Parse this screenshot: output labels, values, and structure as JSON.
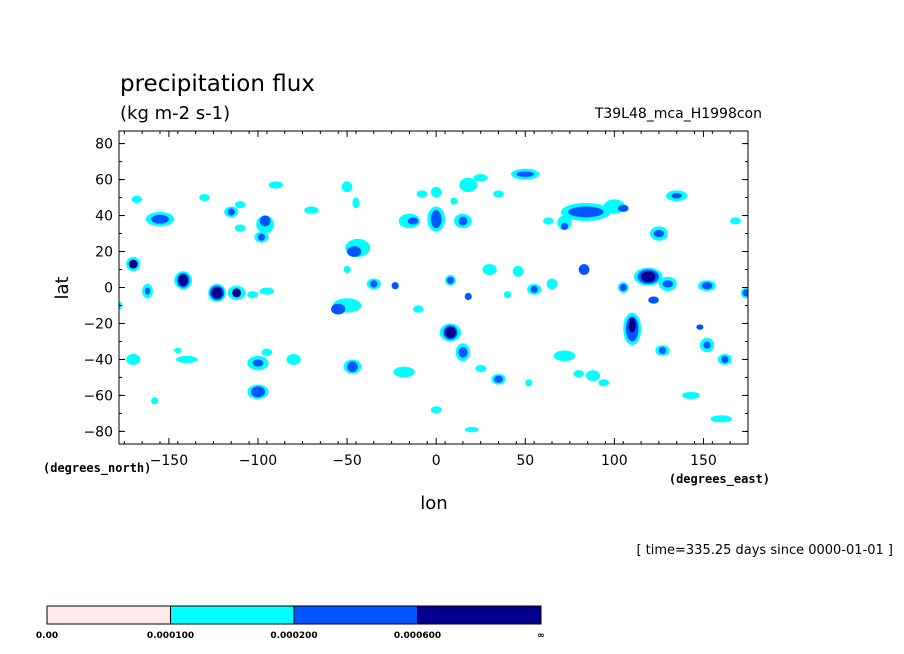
{
  "chart_data": {
    "type": "heatmap",
    "title": "precipitation flux",
    "units": "(kg m-2 s-1)",
    "run_label": "T39L48_mca_H1998con",
    "xlabel": "lon",
    "ylabel": "lat",
    "x_unit_label": "(degrees_east)",
    "y_unit_label": "(degrees_north)",
    "time_label": "[ time=335.25 days since 0000-01-01 ]",
    "xlim": [
      -178,
      175
    ],
    "ylim": [
      -87,
      87
    ],
    "x_ticks": [
      -150,
      -100,
      -50,
      0,
      50,
      100,
      150
    ],
    "x_tick_labels": [
      "−150",
      "−100",
      "−50",
      "0",
      "50",
      "100",
      "150"
    ],
    "y_ticks": [
      80,
      60,
      40,
      20,
      0,
      -20,
      -40,
      -60,
      -80
    ],
    "y_tick_labels": [
      "80",
      "60",
      "40",
      "20",
      "0",
      "−20",
      "−40",
      "−60",
      "−80"
    ],
    "levels": [
      "0.00",
      "0.000100",
      "0.000200",
      "0.000600",
      "∞"
    ],
    "level_colors": [
      "#ffe8e8",
      "#00ffff",
      "#0055ff",
      "#00008b"
    ],
    "cells": [
      {
        "lon": -168,
        "lat": 49,
        "level": 1,
        "rx": 3,
        "ry": 2
      },
      {
        "lon": -155,
        "lat": 38,
        "level": 1,
        "rx": 8,
        "ry": 4
      },
      {
        "lon": -155,
        "lat": 38,
        "level": 2,
        "rx": 5,
        "ry": 2.5
      },
      {
        "lon": -170,
        "lat": 13,
        "level": 1,
        "rx": 4,
        "ry": 4
      },
      {
        "lon": -170,
        "lat": 13,
        "level": 3,
        "rx": 2.5,
        "ry": 2.5
      },
      {
        "lon": -162,
        "lat": -2,
        "level": 1,
        "rx": 3,
        "ry": 4
      },
      {
        "lon": -162,
        "lat": -2,
        "level": 2,
        "rx": 1.5,
        "ry": 2
      },
      {
        "lon": -142,
        "lat": 4,
        "level": 1,
        "rx": 5,
        "ry": 5
      },
      {
        "lon": -142,
        "lat": 4,
        "level": 2,
        "rx": 3.5,
        "ry": 4
      },
      {
        "lon": -142,
        "lat": 4,
        "level": 3,
        "rx": 2.5,
        "ry": 3
      },
      {
        "lon": -123,
        "lat": -3,
        "level": 1,
        "rx": 5,
        "ry": 5
      },
      {
        "lon": -123,
        "lat": -3,
        "level": 2,
        "rx": 4,
        "ry": 4
      },
      {
        "lon": -123,
        "lat": -3,
        "level": 3,
        "rx": 3,
        "ry": 3
      },
      {
        "lon": -112,
        "lat": -3,
        "level": 1,
        "rx": 5,
        "ry": 4
      },
      {
        "lon": -112,
        "lat": -3,
        "level": 3,
        "rx": 2.5,
        "ry": 2.5
      },
      {
        "lon": -130,
        "lat": 50,
        "level": 1,
        "rx": 3,
        "ry": 2
      },
      {
        "lon": -115,
        "lat": 42,
        "level": 1,
        "rx": 4,
        "ry": 3
      },
      {
        "lon": -115,
        "lat": 42,
        "level": 2,
        "rx": 2,
        "ry": 2
      },
      {
        "lon": -96,
        "lat": 35,
        "level": 1,
        "rx": 5,
        "ry": 5
      },
      {
        "lon": -96,
        "lat": 37,
        "level": 2,
        "rx": 3,
        "ry": 3
      },
      {
        "lon": -98,
        "lat": 28,
        "level": 1,
        "rx": 4,
        "ry": 3
      },
      {
        "lon": -98,
        "lat": 28,
        "level": 2,
        "rx": 2,
        "ry": 2
      },
      {
        "lon": -110,
        "lat": 33,
        "level": 1,
        "rx": 3,
        "ry": 2
      },
      {
        "lon": -110,
        "lat": 46,
        "level": 1,
        "rx": 3,
        "ry": 2
      },
      {
        "lon": -90,
        "lat": 57,
        "level": 1,
        "rx": 4,
        "ry": 2
      },
      {
        "lon": -70,
        "lat": 43,
        "level": 1,
        "rx": 4,
        "ry": 2
      },
      {
        "lon": -50,
        "lat": 56,
        "level": 1,
        "rx": 3,
        "ry": 3
      },
      {
        "lon": -45,
        "lat": 47,
        "level": 1,
        "rx": 2,
        "ry": 3
      },
      {
        "lon": -44,
        "lat": 22,
        "level": 1,
        "rx": 7,
        "ry": 5
      },
      {
        "lon": -46,
        "lat": 20,
        "level": 2,
        "rx": 4,
        "ry": 3
      },
      {
        "lon": -50,
        "lat": 10,
        "level": 1,
        "rx": 2,
        "ry": 2
      },
      {
        "lon": -35,
        "lat": 2,
        "level": 1,
        "rx": 4,
        "ry": 3
      },
      {
        "lon": -35,
        "lat": 2,
        "level": 2,
        "rx": 2,
        "ry": 2
      },
      {
        "lon": -23,
        "lat": 1,
        "level": 2,
        "rx": 2,
        "ry": 2
      },
      {
        "lon": -50,
        "lat": -10,
        "level": 1,
        "rx": 8,
        "ry": 4
      },
      {
        "lon": -55,
        "lat": -12,
        "level": 2,
        "rx": 4,
        "ry": 3
      },
      {
        "lon": -95,
        "lat": -2,
        "level": 1,
        "rx": 4,
        "ry": 2
      },
      {
        "lon": -103,
        "lat": -4,
        "level": 1,
        "rx": 3,
        "ry": 2
      },
      {
        "lon": -8,
        "lat": 52,
        "level": 1,
        "rx": 3,
        "ry": 2
      },
      {
        "lon": 0,
        "lat": 53,
        "level": 1,
        "rx": 3,
        "ry": 3
      },
      {
        "lon": 18,
        "lat": 57,
        "level": 1,
        "rx": 5,
        "ry": 4
      },
      {
        "lon": 25,
        "lat": 61,
        "level": 1,
        "rx": 4,
        "ry": 2
      },
      {
        "lon": 50,
        "lat": 63,
        "level": 1,
        "rx": 8,
        "ry": 3
      },
      {
        "lon": 50,
        "lat": 63,
        "level": 2,
        "rx": 5,
        "ry": 1.5
      },
      {
        "lon": 35,
        "lat": 52,
        "level": 1,
        "rx": 3,
        "ry": 2
      },
      {
        "lon": -15,
        "lat": 37,
        "level": 1,
        "rx": 6,
        "ry": 4
      },
      {
        "lon": -13,
        "lat": 37,
        "level": 2,
        "rx": 3,
        "ry": 2
      },
      {
        "lon": 0,
        "lat": 38,
        "level": 1,
        "rx": 5,
        "ry": 7
      },
      {
        "lon": 0,
        "lat": 38,
        "level": 2,
        "rx": 3,
        "ry": 5
      },
      {
        "lon": 15,
        "lat": 37,
        "level": 1,
        "rx": 5,
        "ry": 4
      },
      {
        "lon": 15,
        "lat": 37,
        "level": 2,
        "rx": 2.5,
        "ry": 2.5
      },
      {
        "lon": 10,
        "lat": 48,
        "level": 1,
        "rx": 2,
        "ry": 2
      },
      {
        "lon": 8,
        "lat": 4,
        "level": 1,
        "rx": 3,
        "ry": 3
      },
      {
        "lon": 8,
        "lat": 4,
        "level": 2,
        "rx": 2,
        "ry": 2
      },
      {
        "lon": 30,
        "lat": 10,
        "level": 1,
        "rx": 4,
        "ry": 3
      },
      {
        "lon": 46,
        "lat": 9,
        "level": 1,
        "rx": 3,
        "ry": 3
      },
      {
        "lon": 18,
        "lat": -5,
        "level": 2,
        "rx": 2,
        "ry": 2
      },
      {
        "lon": 55,
        "lat": -1,
        "level": 1,
        "rx": 4,
        "ry": 3
      },
      {
        "lon": 55,
        "lat": -1,
        "level": 2,
        "rx": 2,
        "ry": 2
      },
      {
        "lon": 65,
        "lat": 2,
        "level": 1,
        "rx": 3,
        "ry": 3
      },
      {
        "lon": 83,
        "lat": 10,
        "level": 2,
        "rx": 3,
        "ry": 3
      },
      {
        "lon": 84,
        "lat": 42,
        "level": 1,
        "rx": 14,
        "ry": 5
      },
      {
        "lon": 84,
        "lat": 42,
        "level": 2,
        "rx": 10,
        "ry": 3
      },
      {
        "lon": 100,
        "lat": 45,
        "level": 1,
        "rx": 6,
        "ry": 4
      },
      {
        "lon": 105,
        "lat": 44,
        "level": 2,
        "rx": 3,
        "ry": 2
      },
      {
        "lon": 72,
        "lat": 36,
        "level": 1,
        "rx": 4,
        "ry": 4
      },
      {
        "lon": 72,
        "lat": 34,
        "level": 2,
        "rx": 2,
        "ry": 2
      },
      {
        "lon": 63,
        "lat": 37,
        "level": 1,
        "rx": 3,
        "ry": 2
      },
      {
        "lon": 125,
        "lat": 30,
        "level": 1,
        "rx": 5,
        "ry": 4
      },
      {
        "lon": 125,
        "lat": 30,
        "level": 2,
        "rx": 3,
        "ry": 2
      },
      {
        "lon": 135,
        "lat": 51,
        "level": 1,
        "rx": 6,
        "ry": 3
      },
      {
        "lon": 135,
        "lat": 51,
        "level": 2,
        "rx": 3,
        "ry": 1.5
      },
      {
        "lon": 168,
        "lat": 37,
        "level": 1,
        "rx": 3,
        "ry": 2
      },
      {
        "lon": 105,
        "lat": 0,
        "level": 1,
        "rx": 3,
        "ry": 3
      },
      {
        "lon": 105,
        "lat": 0,
        "level": 2,
        "rx": 2,
        "ry": 2
      },
      {
        "lon": 119,
        "lat": 6,
        "level": 1,
        "rx": 8,
        "ry": 5
      },
      {
        "lon": 119,
        "lat": 6,
        "level": 2,
        "rx": 6,
        "ry": 4
      },
      {
        "lon": 119,
        "lat": 6,
        "level": 3,
        "rx": 4,
        "ry": 3
      },
      {
        "lon": 130,
        "lat": 2,
        "level": 1,
        "rx": 5,
        "ry": 4
      },
      {
        "lon": 130,
        "lat": 2,
        "level": 2,
        "rx": 3,
        "ry": 2
      },
      {
        "lon": 122,
        "lat": -7,
        "level": 2,
        "rx": 3,
        "ry": 2
      },
      {
        "lon": 152,
        "lat": 1,
        "level": 1,
        "rx": 5,
        "ry": 3
      },
      {
        "lon": 152,
        "lat": 1,
        "level": 2,
        "rx": 3,
        "ry": 2
      },
      {
        "lon": 174,
        "lat": -3,
        "level": 1,
        "rx": 3,
        "ry": 3
      },
      {
        "lon": 174,
        "lat": -3,
        "level": 2,
        "rx": 2,
        "ry": 2
      },
      {
        "lon": 8,
        "lat": -25,
        "level": 1,
        "rx": 6,
        "ry": 5
      },
      {
        "lon": 8,
        "lat": -25,
        "level": 2,
        "rx": 4,
        "ry": 4
      },
      {
        "lon": 8,
        "lat": -25,
        "level": 3,
        "rx": 3,
        "ry": 3
      },
      {
        "lon": 15,
        "lat": -36,
        "level": 1,
        "rx": 4,
        "ry": 5
      },
      {
        "lon": 15,
        "lat": -36,
        "level": 2,
        "rx": 2.5,
        "ry": 3
      },
      {
        "lon": 25,
        "lat": -45,
        "level": 1,
        "rx": 3,
        "ry": 2
      },
      {
        "lon": 35,
        "lat": -51,
        "level": 1,
        "rx": 4,
        "ry": 3
      },
      {
        "lon": 35,
        "lat": -51,
        "level": 2,
        "rx": 2.5,
        "ry": 2
      },
      {
        "lon": 52,
        "lat": -53,
        "level": 1,
        "rx": 2,
        "ry": 2
      },
      {
        "lon": 110,
        "lat": -23,
        "level": 1,
        "rx": 5,
        "ry": 9
      },
      {
        "lon": 110,
        "lat": -23,
        "level": 2,
        "rx": 3.5,
        "ry": 7
      },
      {
        "lon": 110,
        "lat": -21,
        "level": 3,
        "rx": 2,
        "ry": 4
      },
      {
        "lon": 127,
        "lat": -35,
        "level": 1,
        "rx": 4,
        "ry": 3
      },
      {
        "lon": 127,
        "lat": -35,
        "level": 2,
        "rx": 2,
        "ry": 2
      },
      {
        "lon": 152,
        "lat": -32,
        "level": 1,
        "rx": 4,
        "ry": 4
      },
      {
        "lon": 152,
        "lat": -32,
        "level": 2,
        "rx": 2,
        "ry": 2
      },
      {
        "lon": 148,
        "lat": -22,
        "level": 2,
        "rx": 2,
        "ry": 1.5
      },
      {
        "lon": 162,
        "lat": -40,
        "level": 1,
        "rx": 4,
        "ry": 3
      },
      {
        "lon": 162,
        "lat": -40,
        "level": 2,
        "rx": 2,
        "ry": 2
      },
      {
        "lon": 72,
        "lat": -38,
        "level": 1,
        "rx": 6,
        "ry": 3
      },
      {
        "lon": 88,
        "lat": -49,
        "level": 1,
        "rx": 4,
        "ry": 3
      },
      {
        "lon": 80,
        "lat": -48,
        "level": 1,
        "rx": 3,
        "ry": 2
      },
      {
        "lon": 94,
        "lat": -53,
        "level": 1,
        "rx": 3,
        "ry": 2
      },
      {
        "lon": 143,
        "lat": -60,
        "level": 1,
        "rx": 5,
        "ry": 2
      },
      {
        "lon": 160,
        "lat": -73,
        "level": 1,
        "rx": 6,
        "ry": 2
      },
      {
        "lon": -170,
        "lat": -40,
        "level": 1,
        "rx": 4,
        "ry": 3
      },
      {
        "lon": -140,
        "lat": -40,
        "level": 1,
        "rx": 6,
        "ry": 2
      },
      {
        "lon": -145,
        "lat": -35,
        "level": 1,
        "rx": 2,
        "ry": 1.5
      },
      {
        "lon": -100,
        "lat": -42,
        "level": 1,
        "rx": 6,
        "ry": 4
      },
      {
        "lon": -100,
        "lat": -42,
        "level": 2,
        "rx": 3,
        "ry": 2
      },
      {
        "lon": -80,
        "lat": -40,
        "level": 1,
        "rx": 4,
        "ry": 3
      },
      {
        "lon": -95,
        "lat": -36,
        "level": 1,
        "rx": 3,
        "ry": 2
      },
      {
        "lon": -47,
        "lat": -44,
        "level": 1,
        "rx": 5,
        "ry": 4
      },
      {
        "lon": -47,
        "lat": -44,
        "level": 2,
        "rx": 3,
        "ry": 3
      },
      {
        "lon": -18,
        "lat": -47,
        "level": 1,
        "rx": 6,
        "ry": 3
      },
      {
        "lon": -100,
        "lat": -58,
        "level": 1,
        "rx": 6,
        "ry": 4
      },
      {
        "lon": -100,
        "lat": -58,
        "level": 2,
        "rx": 4,
        "ry": 3
      },
      {
        "lon": -158,
        "lat": -63,
        "level": 1,
        "rx": 2,
        "ry": 2
      },
      {
        "lon": 0,
        "lat": -68,
        "level": 1,
        "rx": 3,
        "ry": 2
      },
      {
        "lon": 20,
        "lat": -79,
        "level": 1,
        "rx": 4,
        "ry": 1.5
      },
      {
        "lon": -10,
        "lat": -12,
        "level": 1,
        "rx": 3,
        "ry": 2
      },
      {
        "lon": -178,
        "lat": -10,
        "level": 1,
        "rx": 2,
        "ry": 2
      },
      {
        "lon": 40,
        "lat": -4,
        "level": 1,
        "rx": 2,
        "ry": 2
      }
    ]
  }
}
